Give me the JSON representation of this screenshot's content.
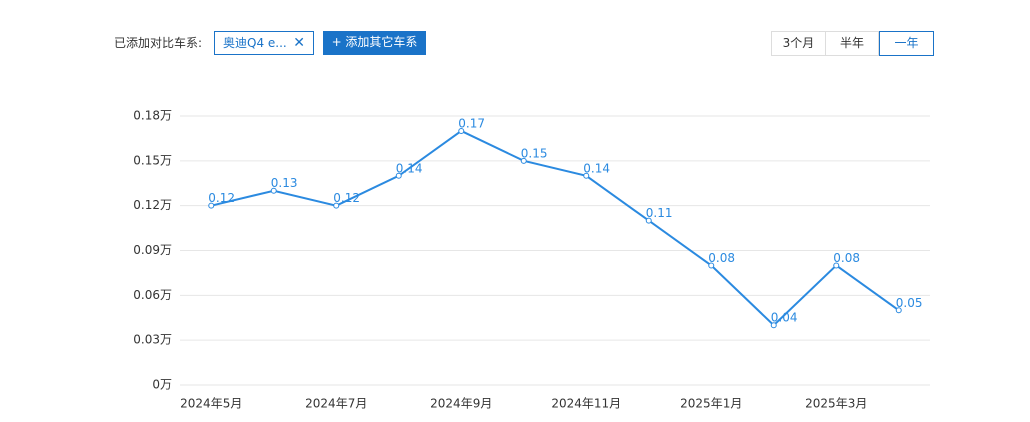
{
  "toolbar": {
    "label": "已添加对比车系:",
    "chips": [
      "奥迪Q4 e..."
    ],
    "add_button": "+ 添加其它车系",
    "ranges": [
      "3个月",
      "半年",
      "一年"
    ],
    "selected_range": 2
  },
  "chart_data": {
    "type": "line",
    "categories": [
      "2024年5月",
      null,
      "2024年7月",
      null,
      "2024年9月",
      null,
      "2024年11月",
      null,
      "2025年1月",
      null,
      "2025年3月",
      null
    ],
    "series": [
      {
        "color": "#2b8ae0",
        "values": [
          0.12,
          0.13,
          0.12,
          0.14,
          0.17,
          0.15,
          0.14,
          0.11,
          0.08,
          0.04,
          0.08,
          0.05
        ]
      }
    ],
    "ylim": [
      0,
      0.18
    ],
    "yticks": [
      {
        "value": 0,
        "label": "0万"
      },
      {
        "value": 0.03,
        "label": "0.03万"
      },
      {
        "value": 0.06,
        "label": "0.06万"
      },
      {
        "value": 0.09,
        "label": "0.09万"
      },
      {
        "value": 0.12,
        "label": "0.12万"
      },
      {
        "value": 0.15,
        "label": "0.15万"
      },
      {
        "value": 0.18,
        "label": "0.18万"
      }
    ],
    "grid": true
  }
}
